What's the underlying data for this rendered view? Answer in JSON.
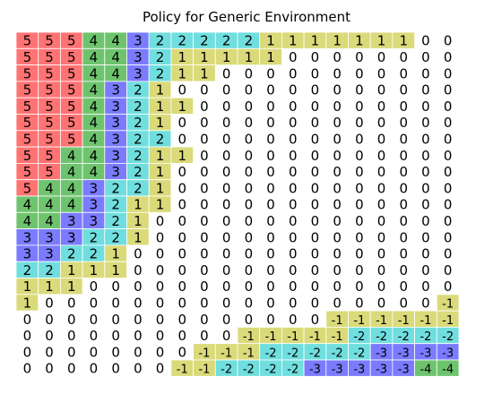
{
  "chart_data": {
    "type": "heatmap",
    "title": "Policy for Generic Environment",
    "grid": false,
    "rows": [
      [
        5,
        5,
        5,
        4,
        4,
        3,
        2,
        2,
        2,
        2,
        2,
        1,
        1,
        1,
        1,
        1,
        1,
        1,
        0,
        0
      ],
      [
        5,
        5,
        5,
        4,
        4,
        3,
        2,
        1,
        1,
        1,
        1,
        1,
        0,
        0,
        0,
        0,
        0,
        0,
        0,
        0
      ],
      [
        5,
        5,
        5,
        4,
        4,
        3,
        2,
        1,
        1,
        0,
        0,
        0,
        0,
        0,
        0,
        0,
        0,
        0,
        0,
        0
      ],
      [
        5,
        5,
        5,
        4,
        3,
        2,
        1,
        0,
        0,
        0,
        0,
        0,
        0,
        0,
        0,
        0,
        0,
        0,
        0,
        0
      ],
      [
        5,
        5,
        5,
        4,
        3,
        2,
        1,
        1,
        0,
        0,
        0,
        0,
        0,
        0,
        0,
        0,
        0,
        0,
        0,
        0
      ],
      [
        5,
        5,
        5,
        4,
        3,
        2,
        1,
        0,
        0,
        0,
        0,
        0,
        0,
        0,
        0,
        0,
        0,
        0,
        0,
        0
      ],
      [
        5,
        5,
        5,
        4,
        3,
        2,
        2,
        0,
        0,
        0,
        0,
        0,
        0,
        0,
        0,
        0,
        0,
        0,
        0,
        0
      ],
      [
        5,
        5,
        4,
        4,
        3,
        2,
        1,
        1,
        0,
        0,
        0,
        0,
        0,
        0,
        0,
        0,
        0,
        0,
        0,
        0
      ],
      [
        5,
        5,
        4,
        4,
        3,
        2,
        1,
        0,
        0,
        0,
        0,
        0,
        0,
        0,
        0,
        0,
        0,
        0,
        0,
        0
      ],
      [
        5,
        4,
        4,
        3,
        2,
        2,
        1,
        0,
        0,
        0,
        0,
        0,
        0,
        0,
        0,
        0,
        0,
        0,
        0,
        0
      ],
      [
        4,
        4,
        4,
        3,
        2,
        1,
        1,
        0,
        0,
        0,
        0,
        0,
        0,
        0,
        0,
        0,
        0,
        0,
        0,
        0
      ],
      [
        4,
        4,
        3,
        3,
        2,
        1,
        0,
        0,
        0,
        0,
        0,
        0,
        0,
        0,
        0,
        0,
        0,
        0,
        0,
        0
      ],
      [
        3,
        3,
        3,
        2,
        2,
        1,
        0,
        0,
        0,
        0,
        0,
        0,
        0,
        0,
        0,
        0,
        0,
        0,
        0,
        0
      ],
      [
        3,
        3,
        2,
        2,
        1,
        0,
        0,
        0,
        0,
        0,
        0,
        0,
        0,
        0,
        0,
        0,
        0,
        0,
        0,
        0
      ],
      [
        2,
        2,
        1,
        1,
        1,
        0,
        0,
        0,
        0,
        0,
        0,
        0,
        0,
        0,
        0,
        0,
        0,
        0,
        0,
        0
      ],
      [
        1,
        1,
        1,
        0,
        0,
        0,
        0,
        0,
        0,
        0,
        0,
        0,
        0,
        0,
        0,
        0,
        0,
        0,
        0,
        0
      ],
      [
        1,
        0,
        0,
        0,
        0,
        0,
        0,
        0,
        0,
        0,
        0,
        0,
        0,
        0,
        0,
        0,
        0,
        0,
        0,
        -1
      ],
      [
        0,
        0,
        0,
        0,
        0,
        0,
        0,
        0,
        0,
        0,
        0,
        0,
        0,
        0,
        -1,
        -1,
        -1,
        -1,
        -1,
        -1
      ],
      [
        0,
        0,
        0,
        0,
        0,
        0,
        0,
        0,
        0,
        0,
        -1,
        -1,
        -1,
        -1,
        -1,
        -2,
        -2,
        -2,
        -2,
        -2
      ],
      [
        0,
        0,
        0,
        0,
        0,
        0,
        0,
        0,
        -1,
        -1,
        -1,
        -2,
        -2,
        -2,
        -2,
        -2,
        -3,
        -3,
        -3,
        -3
      ],
      [
        0,
        0,
        0,
        0,
        0,
        0,
        0,
        -1,
        -1,
        -2,
        -2,
        -2,
        -2,
        -3,
        -3,
        -3,
        -3,
        -3,
        -4,
        -4
      ]
    ],
    "colors": {
      "5": "#ff7373",
      "4": "#6ec46e",
      "3": "#7b7bff",
      "2": "#70dede",
      "1": "#dada7a",
      "0": "#ffffff",
      "-1": "#dada7a",
      "-2": "#70dede",
      "-3": "#7b7bff",
      "-4": "#6ec46e"
    }
  }
}
